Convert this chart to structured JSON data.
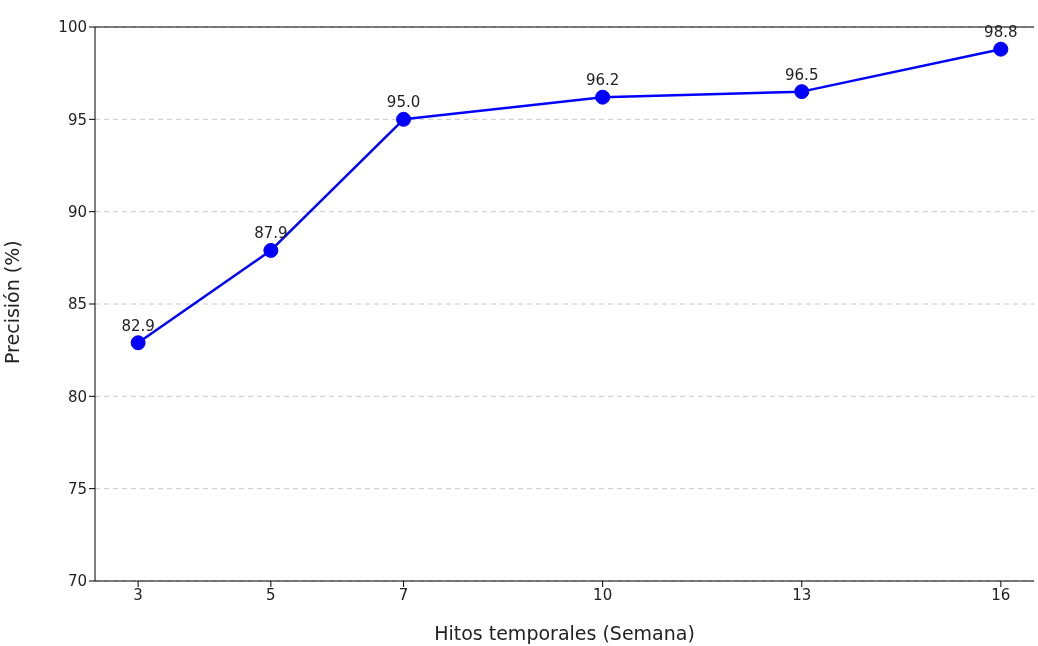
{
  "chart_data": {
    "type": "line",
    "xlabel": "Hitos temporales (Semana)",
    "ylabel": "Precisión (%)",
    "x": [
      3,
      5,
      7,
      10,
      13,
      16
    ],
    "series": [
      {
        "color": "#0000ff",
        "values": [
          82.9,
          87.9,
          95.0,
          96.2,
          96.5,
          98.8
        ],
        "value_labels": [
          "82.9",
          "87.9",
          "95.0",
          "96.2",
          "96.5",
          "98.8"
        ]
      }
    ],
    "xlim": [
      2.35,
      16.5
    ],
    "xticks": [
      3,
      5,
      7,
      10,
      13,
      16
    ],
    "ylim": [
      70,
      100
    ],
    "yticks": [
      70,
      75,
      80,
      85,
      90,
      95,
      100
    ],
    "grid": "y",
    "marker": "circle",
    "line_style": "solid"
  }
}
